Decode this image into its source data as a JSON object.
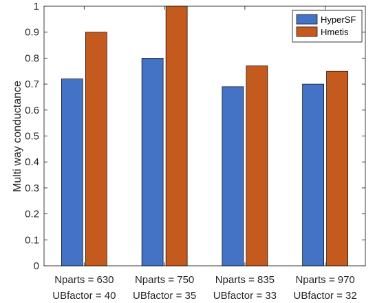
{
  "chart_data": {
    "type": "bar",
    "categories": [
      [
        "Nparts = 630",
        "UBfactor = 40"
      ],
      [
        "Nparts = 750",
        "UBfactor = 35"
      ],
      [
        "Nparts = 835",
        "UBfactor = 33"
      ],
      [
        "Nparts = 970",
        "UBfactor = 32"
      ]
    ],
    "series": [
      {
        "name": "HyperSF",
        "values": [
          0.72,
          0.8,
          0.69,
          0.7
        ],
        "color": "#4472C4"
      },
      {
        "name": "Hmetis",
        "values": [
          0.9,
          1.0,
          0.77,
          0.75
        ],
        "color": "#C55A1E"
      }
    ],
    "xlabel": "",
    "ylabel": "Multi way conductance",
    "ylim": [
      0,
      1
    ],
    "yticks": [
      "0",
      "0.1",
      "0.2",
      "0.3",
      "0.4",
      "0.5",
      "0.6",
      "0.7",
      "0.8",
      "0.9",
      "1"
    ],
    "grid": false,
    "legend_position": "top-right"
  }
}
